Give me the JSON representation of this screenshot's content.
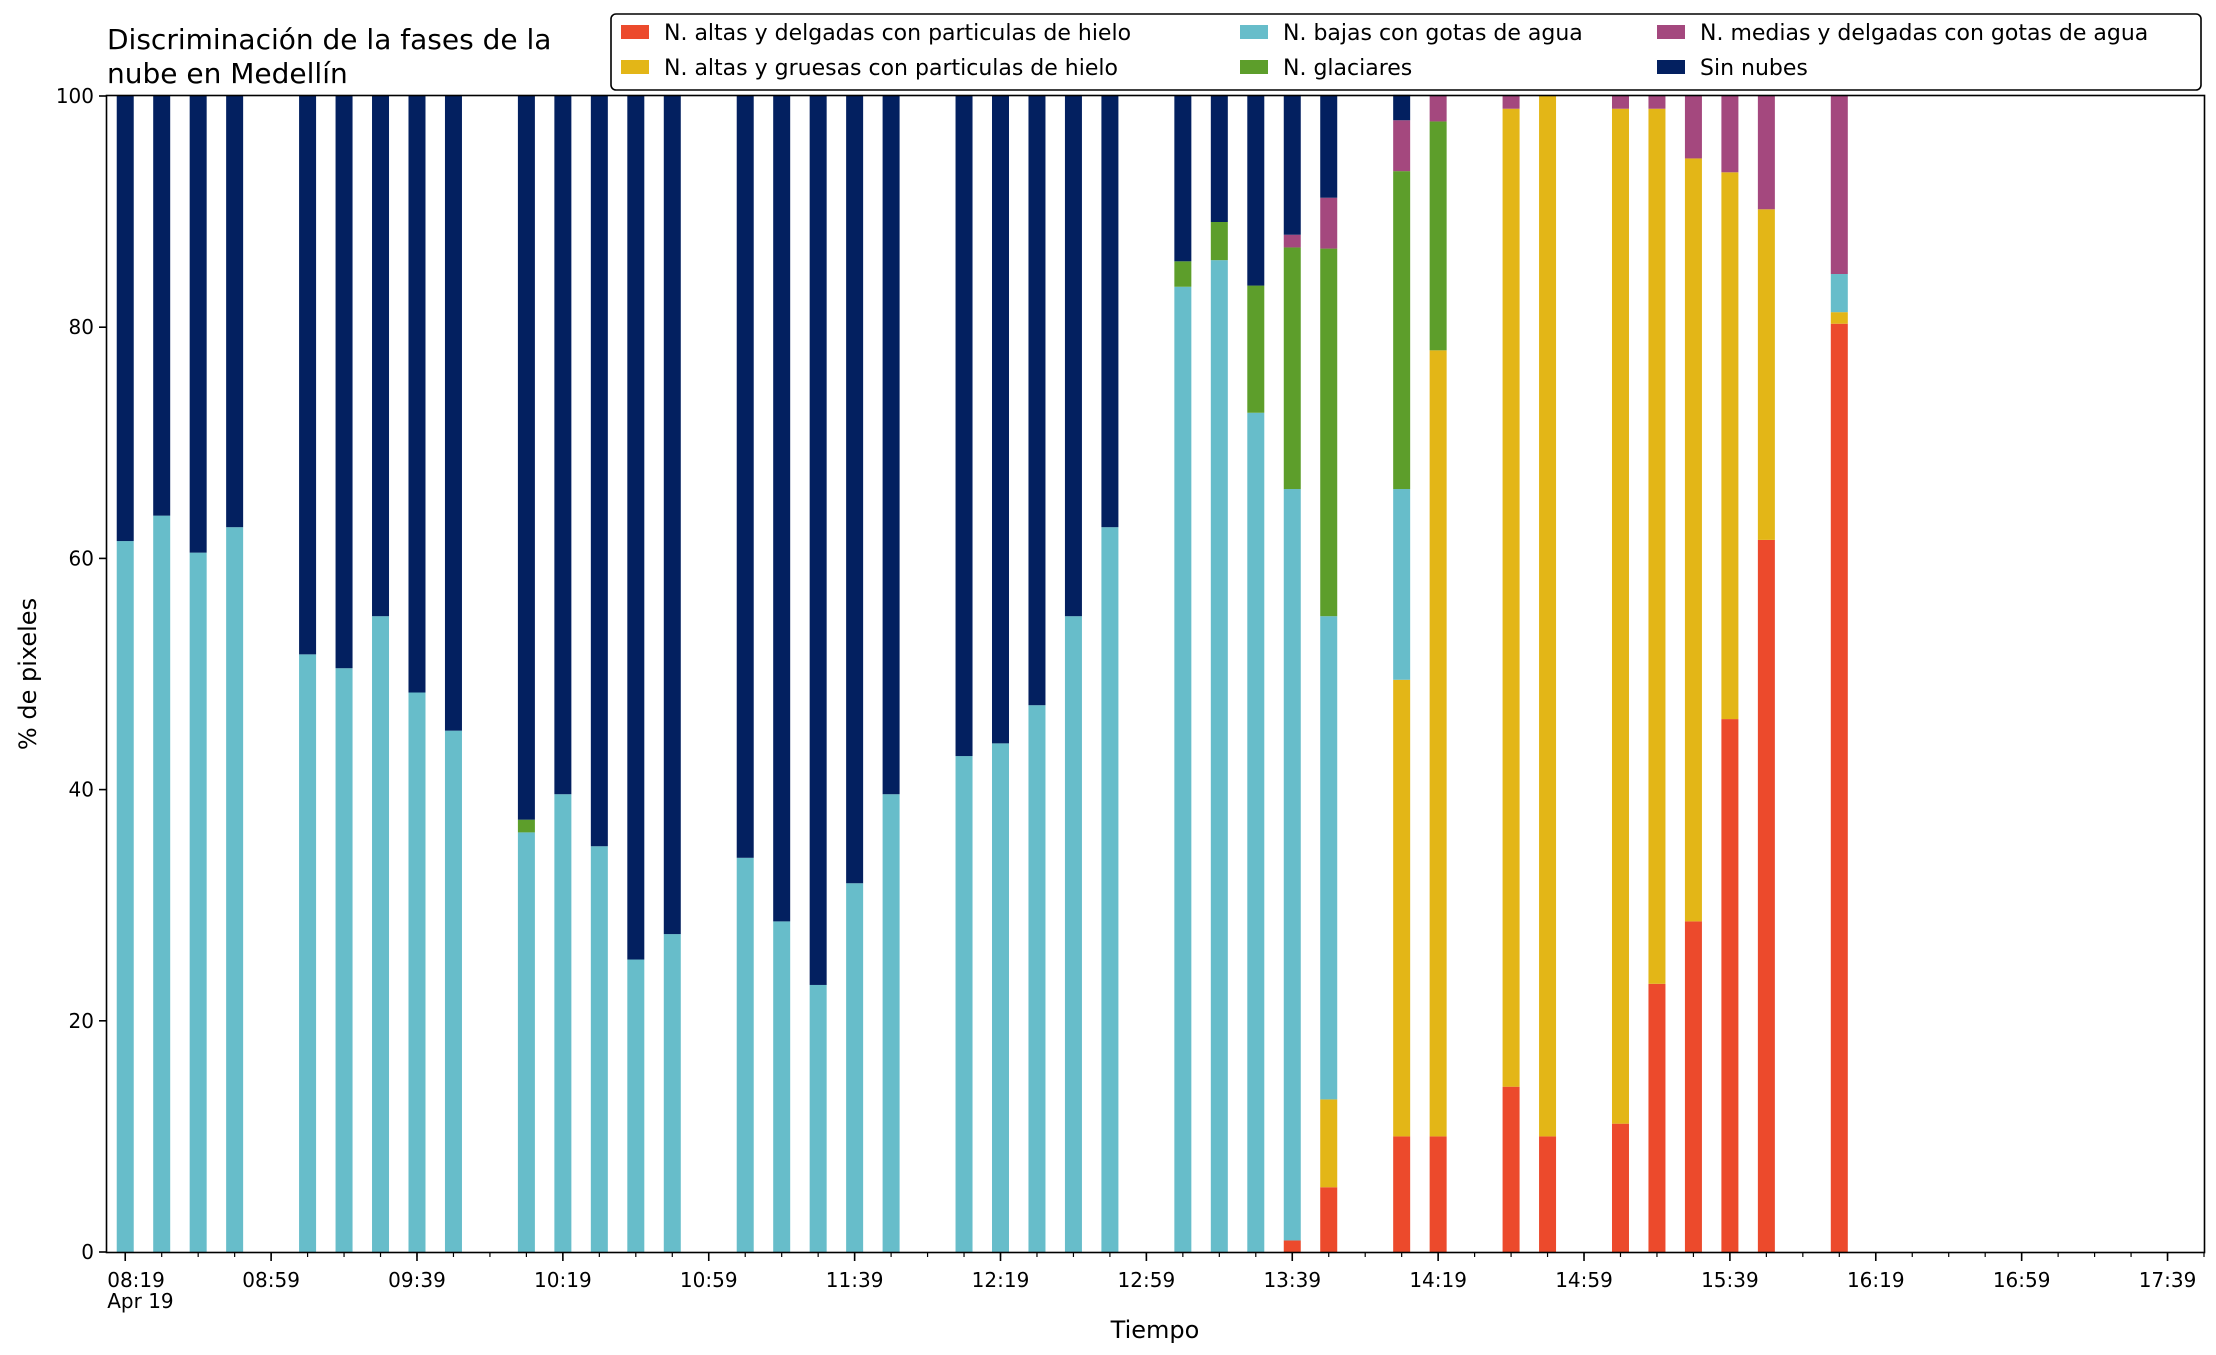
{
  "chart_data": {
    "type": "bar",
    "stacked": true,
    "title": [
      "Discriminación de la fases de la",
      "nube en Medellín"
    ],
    "xlabel": "Tiempo",
    "ylabel": "% de pixeles",
    "ylim": [
      0,
      100
    ],
    "yticks": [
      0,
      20,
      40,
      60,
      80,
      100
    ],
    "x_range": [
      "08:14",
      "17:49"
    ],
    "x_minor_tick_every_minutes": 10,
    "xtick_labels": [
      "08:19",
      "08:59",
      "09:39",
      "10:19",
      "10:59",
      "11:39",
      "12:19",
      "12:59",
      "13:39",
      "14:19",
      "14:59",
      "15:39",
      "16:19",
      "16:59",
      "17:39"
    ],
    "xtick_sublabel": "Apr 19",
    "grid": false,
    "legend": {
      "position": "top-right",
      "columns": 3
    },
    "categories": [
      "08:19",
      "08:29",
      "08:39",
      "08:49",
      "09:09",
      "09:19",
      "09:29",
      "09:39",
      "09:49",
      "10:09",
      "10:19",
      "10:29",
      "10:39",
      "10:49",
      "11:09",
      "11:19",
      "11:29",
      "11:39",
      "11:49",
      "12:09",
      "12:19",
      "12:29",
      "12:39",
      "12:49",
      "13:09",
      "13:19",
      "13:29",
      "13:39",
      "13:49",
      "14:09",
      "14:19",
      "14:39",
      "14:49",
      "15:09",
      "15:19",
      "15:29",
      "15:39",
      "15:49",
      "16:09"
    ],
    "series": [
      {
        "name": "N. altas y delgadas con particulas de hielo",
        "color": "#ec4a2c",
        "values": [
          0,
          0,
          0,
          0,
          0,
          0,
          0,
          0,
          0,
          0,
          0,
          0,
          0,
          0,
          0,
          0,
          0,
          0,
          0,
          0,
          0,
          0,
          0,
          0,
          0,
          0,
          0,
          1,
          5.6,
          10,
          10,
          14.3,
          10,
          11.1,
          23.2,
          28.6,
          46.1,
          61.6,
          80.3
        ]
      },
      {
        "name": "N. altas y gruesas con particulas de hielo",
        "color": "#e3b617",
        "values": [
          0,
          0,
          0,
          0,
          0,
          0,
          0,
          0,
          0,
          0,
          0,
          0,
          0,
          0,
          0,
          0,
          0,
          0,
          0,
          0,
          0,
          0,
          0,
          0,
          0,
          0,
          0,
          0,
          7.6,
          39.5,
          68,
          84.6,
          90,
          87.8,
          75.7,
          66,
          47.3,
          28.6,
          1
        ]
      },
      {
        "name": "N. bajas con gotas de agua",
        "color": "#67bdca",
        "values": [
          61.5,
          63.7,
          60.5,
          62.7,
          51.7,
          50.5,
          55,
          48.4,
          45.1,
          36.3,
          39.6,
          35.1,
          25.3,
          27.5,
          34.1,
          28.6,
          23.1,
          31.9,
          39.6,
          42.9,
          44,
          47.3,
          55,
          62.7,
          83.5,
          85.8,
          72.6,
          65,
          41.8,
          16.5,
          0,
          0,
          0,
          0,
          0,
          0,
          0,
          0,
          3.3
        ]
      },
      {
        "name": "N. glaciares",
        "color": "#5d9e2b",
        "values": [
          0,
          0,
          0,
          0,
          0,
          0,
          0,
          0,
          0,
          1.1,
          0,
          0,
          0,
          0,
          0,
          0,
          0,
          0,
          0,
          0,
          0,
          0,
          0,
          0,
          2.2,
          3.3,
          11,
          20.9,
          31.8,
          27.5,
          19.8,
          0,
          0,
          0,
          0,
          0,
          0,
          0,
          0
        ]
      },
      {
        "name": "N. medias y delgadas con gotas de agua",
        "color": "#a4487e",
        "values": [
          0,
          0,
          0,
          0,
          0,
          0,
          0,
          0,
          0,
          0,
          0,
          0,
          0,
          0,
          0,
          0,
          0,
          0,
          0,
          0,
          0,
          0,
          0,
          0,
          0,
          0,
          0,
          1.1,
          4.4,
          4.4,
          2.2,
          1.1,
          0,
          1.1,
          1.1,
          5.4,
          6.6,
          9.8,
          15.4
        ]
      },
      {
        "name": "Sin nubes",
        "color": "#032060",
        "values": [
          38.5,
          36.3,
          39.5,
          37.3,
          48.3,
          49.5,
          45,
          51.6,
          54.9,
          62.6,
          60.4,
          64.9,
          74.7,
          72.5,
          65.9,
          71.4,
          76.9,
          68.1,
          60.4,
          57.1,
          56,
          52.7,
          45,
          37.3,
          14.3,
          10.9,
          16.4,
          12,
          8.8,
          2.2,
          0,
          0,
          0,
          0,
          0,
          0,
          0,
          0,
          0
        ]
      }
    ]
  }
}
